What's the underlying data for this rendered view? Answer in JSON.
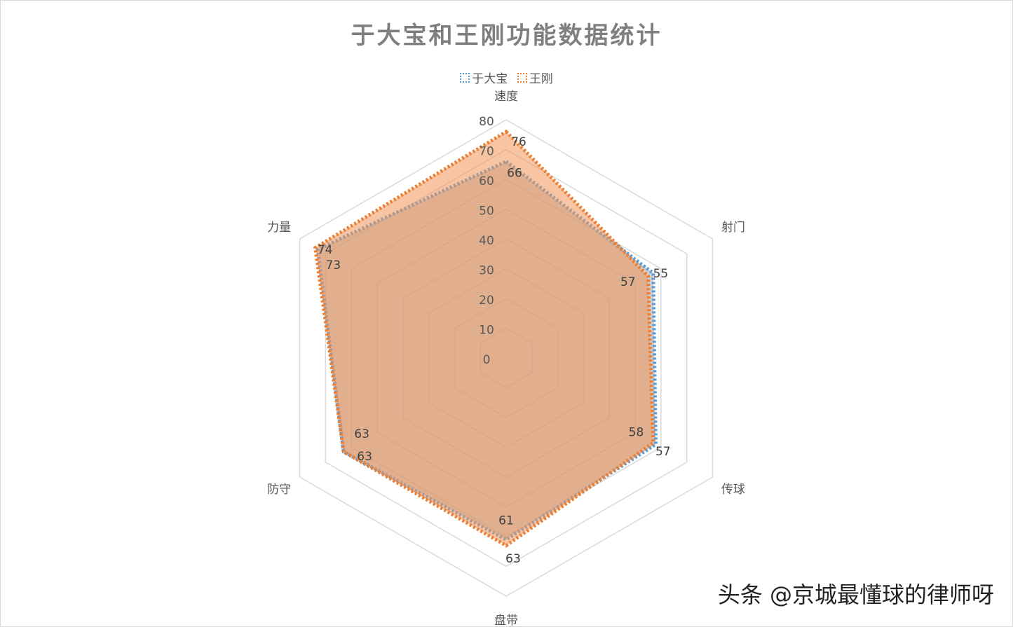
{
  "chart_data": {
    "type": "radar",
    "title": "于大宝和王刚功能数据统计",
    "categories": [
      "速度",
      "射门",
      "传球",
      "盘带",
      "防守",
      "力量"
    ],
    "rlim": [
      0,
      80
    ],
    "ticks": [
      0,
      10,
      20,
      30,
      40,
      50,
      60,
      70,
      80
    ],
    "legend": "top",
    "series": [
      {
        "name": "于大宝",
        "values": [
          66,
          57,
          58,
          61,
          63,
          73
        ],
        "color": "#5B9BD5",
        "fill": "rgba(165,165,165,0.55)"
      },
      {
        "name": "王刚",
        "values": [
          76,
          55,
          57,
          63,
          63,
          74
        ],
        "color": "#ED7D31",
        "fill": "rgba(240,150,90,0.55)"
      }
    ]
  },
  "watermark": "头条 @京城最懂球的律师呀"
}
